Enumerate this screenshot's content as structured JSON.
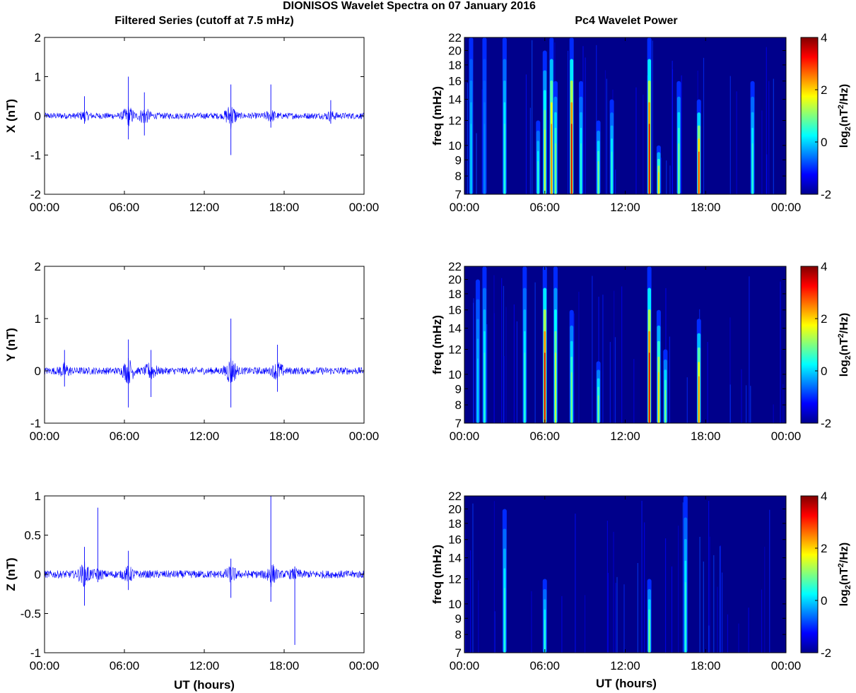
{
  "title": "DIONISOS Wavelet Spectra on 07 January 2016",
  "left_column_title": "Filtered Series (cutoff at 7.5 mHz)",
  "right_column_title": "Pc4 Wavelet Power",
  "xlabel": "UT (hours)",
  "x_tick_labels": [
    "00:00",
    "06:00",
    "12:00",
    "18:00",
    "00:00"
  ],
  "colorbar": {
    "ticks": [
      "4",
      "2",
      "0",
      "-2"
    ],
    "label_main": "log",
    "label_sub": "2",
    "label_rest": "(nT",
    "label_sup": "2",
    "label_end": "/Hz)",
    "colormap": "jet"
  },
  "colors": {
    "series": "#0000ff",
    "background": "#00008b"
  },
  "chart_data": [
    {
      "type": "line",
      "component": "X",
      "ylabel": "X (nT)",
      "ylim": [
        -2,
        2
      ],
      "y_ticks": [
        "2",
        "1",
        "0",
        "-1",
        "-2"
      ],
      "xlim": [
        0,
        24
      ],
      "noise_amplitude": 0.08,
      "spikes": [
        {
          "t": 3.0,
          "min": -0.2,
          "max": 0.5
        },
        {
          "t": 6.3,
          "min": -0.6,
          "max": 1.0
        },
        {
          "t": 7.5,
          "min": -0.5,
          "max": 0.6
        },
        {
          "t": 14.0,
          "min": -1.0,
          "max": 0.8
        },
        {
          "t": 17.0,
          "min": -0.3,
          "max": 0.8
        },
        {
          "t": 21.5,
          "min": -0.2,
          "max": 0.4
        }
      ]
    },
    {
      "type": "heatmap",
      "component": "X",
      "ylabel": "freq (mHz)",
      "y_ticks": [
        "22",
        "20",
        "18",
        "16",
        "14",
        "12",
        "10",
        "9",
        "8",
        "7"
      ],
      "ylim": [
        7,
        22
      ],
      "clim": [
        -2,
        4
      ],
      "streaks": [
        {
          "t": 0.5,
          "top": 22,
          "power": 0
        },
        {
          "t": 1.5,
          "top": 22,
          "power": -0.5
        },
        {
          "t": 3.0,
          "top": 22,
          "power": 0.5
        },
        {
          "t": 5.5,
          "top": 12,
          "power": 0.5
        },
        {
          "t": 6.0,
          "top": 20,
          "power": 1.5
        },
        {
          "t": 6.5,
          "top": 22,
          "power": 2.5
        },
        {
          "t": 6.8,
          "top": 16,
          "power": 1.0
        },
        {
          "t": 8.0,
          "top": 22,
          "power": 3.5
        },
        {
          "t": 8.7,
          "top": 16,
          "power": 0.5
        },
        {
          "t": 10.0,
          "top": 12,
          "power": 1.0
        },
        {
          "t": 11.0,
          "top": 14,
          "power": 0.5
        },
        {
          "t": 13.8,
          "top": 22,
          "power": 3.5
        },
        {
          "t": 14.5,
          "top": 10,
          "power": 2.0
        },
        {
          "t": 16.0,
          "top": 16,
          "power": 1.0
        },
        {
          "t": 17.5,
          "top": 14,
          "power": 3.0
        },
        {
          "t": 21.5,
          "top": 16,
          "power": 0.5
        }
      ]
    },
    {
      "type": "line",
      "component": "Y",
      "ylabel": "Y (nT)",
      "ylim": [
        -1,
        2
      ],
      "y_ticks": [
        "2",
        "1",
        "0",
        "-1"
      ],
      "xlim": [
        0,
        24
      ],
      "noise_amplitude": 0.07,
      "spikes": [
        {
          "t": 1.5,
          "min": -0.3,
          "max": 0.4
        },
        {
          "t": 6.3,
          "min": -0.7,
          "max": 0.6
        },
        {
          "t": 8.0,
          "min": -0.5,
          "max": 0.4
        },
        {
          "t": 14.0,
          "min": -0.7,
          "max": 1.0
        },
        {
          "t": 17.5,
          "min": -0.4,
          "max": 0.5
        }
      ]
    },
    {
      "type": "heatmap",
      "component": "Y",
      "ylabel": "freq (mHz)",
      "y_ticks": [
        "22",
        "20",
        "18",
        "16",
        "14",
        "12",
        "10",
        "9",
        "8",
        "7"
      ],
      "ylim": [
        7,
        22
      ],
      "clim": [
        -2,
        4
      ],
      "streaks": [
        {
          "t": 1.0,
          "top": 20,
          "power": 0
        },
        {
          "t": 1.5,
          "top": 22,
          "power": 0.5
        },
        {
          "t": 4.5,
          "top": 22,
          "power": 0.5
        },
        {
          "t": 6.0,
          "top": 22,
          "power": 3.5
        },
        {
          "t": 6.8,
          "top": 22,
          "power": 1.5
        },
        {
          "t": 8.0,
          "top": 16,
          "power": 1.0
        },
        {
          "t": 10.0,
          "top": 11,
          "power": 1.0
        },
        {
          "t": 13.8,
          "top": 22,
          "power": 3.5
        },
        {
          "t": 14.5,
          "top": 16,
          "power": 2.0
        },
        {
          "t": 15.0,
          "top": 12,
          "power": 1.0
        },
        {
          "t": 17.5,
          "top": 15,
          "power": 2.5
        }
      ]
    },
    {
      "type": "line",
      "component": "Z",
      "ylabel": "Z (nT)",
      "ylim": [
        -1,
        1
      ],
      "y_ticks": [
        "1",
        "0.5",
        "0",
        "-0.5",
        "-1"
      ],
      "xlim": [
        0,
        24
      ],
      "noise_amplitude": 0.05,
      "spikes": [
        {
          "t": 3.0,
          "min": -0.4,
          "max": 0.35
        },
        {
          "t": 4.0,
          "min": -0.1,
          "max": 0.85
        },
        {
          "t": 6.3,
          "min": -0.2,
          "max": 0.3
        },
        {
          "t": 14.0,
          "min": -0.3,
          "max": 0.2
        },
        {
          "t": 17.0,
          "min": -0.35,
          "max": 1.0
        },
        {
          "t": 18.8,
          "min": -0.9,
          "max": 0.1
        }
      ]
    },
    {
      "type": "heatmap",
      "component": "Z",
      "ylabel": "freq (mHz)",
      "y_ticks": [
        "22",
        "20",
        "18",
        "16",
        "14",
        "12",
        "10",
        "9",
        "8",
        "7"
      ],
      "ylim": [
        7,
        22
      ],
      "clim": [
        -2,
        4
      ],
      "streaks": [
        {
          "t": 3.0,
          "top": 20,
          "power": 0.5
        },
        {
          "t": 6.0,
          "top": 12,
          "power": 0.5
        },
        {
          "t": 13.8,
          "top": 12,
          "power": 1.0
        },
        {
          "t": 16.5,
          "top": 22,
          "power": 0.5
        }
      ]
    }
  ]
}
